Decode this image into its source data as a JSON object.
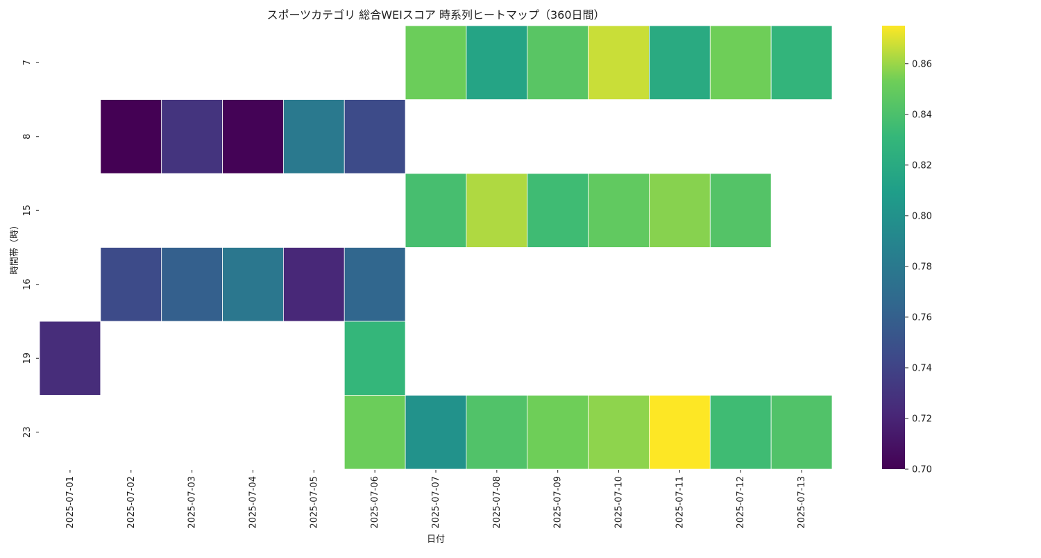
{
  "chart_data": {
    "type": "heatmap",
    "title": "スポーツカテゴリ 総合WEIスコア 時系列ヒートマップ（360日間）",
    "xlabel": "日付",
    "ylabel": "時間帯（時）",
    "x_categories": [
      "2025-07-01",
      "2025-07-02",
      "2025-07-03",
      "2025-07-04",
      "2025-07-05",
      "2025-07-06",
      "2025-07-07",
      "2025-07-08",
      "2025-07-09",
      "2025-07-10",
      "2025-07-11",
      "2025-07-12",
      "2025-07-13"
    ],
    "y_categories": [
      "7",
      "8",
      "15",
      "16",
      "19",
      "23"
    ],
    "values": [
      [
        null,
        null,
        null,
        null,
        null,
        null,
        0.852,
        0.815,
        0.845,
        0.867,
        0.82,
        0.853,
        0.829
      ],
      [
        null,
        0.7,
        0.73,
        0.701,
        0.78,
        0.745,
        null,
        null,
        null,
        null,
        null,
        null,
        null
      ],
      [
        null,
        null,
        null,
        null,
        null,
        null,
        0.838,
        0.863,
        0.835,
        0.848,
        0.857,
        0.843,
        null
      ],
      [
        null,
        0.745,
        0.76,
        0.778,
        0.722,
        0.765,
        null,
        null,
        null,
        null,
        null,
        null,
        null
      ],
      [
        null,
        null,
        null,
        null,
        null,
        0.83,
        null,
        null,
        null,
        null,
        null,
        null,
        null
      ],
      [
        null,
        null,
        null,
        null,
        null,
        0.852,
        0.8,
        0.842,
        0.853,
        0.858,
        0.875,
        0.835,
        0.842
      ]
    ],
    "first_row_override": [
      0.725
    ],
    "colormap": "viridis",
    "colorbar": {
      "min": 0.7,
      "max": 0.875,
      "ticks": [
        "0.70",
        "0.72",
        "0.74",
        "0.76",
        "0.78",
        "0.80",
        "0.82",
        "0.84",
        "0.86"
      ]
    },
    "grid": false,
    "legend": "colorbar-right"
  }
}
